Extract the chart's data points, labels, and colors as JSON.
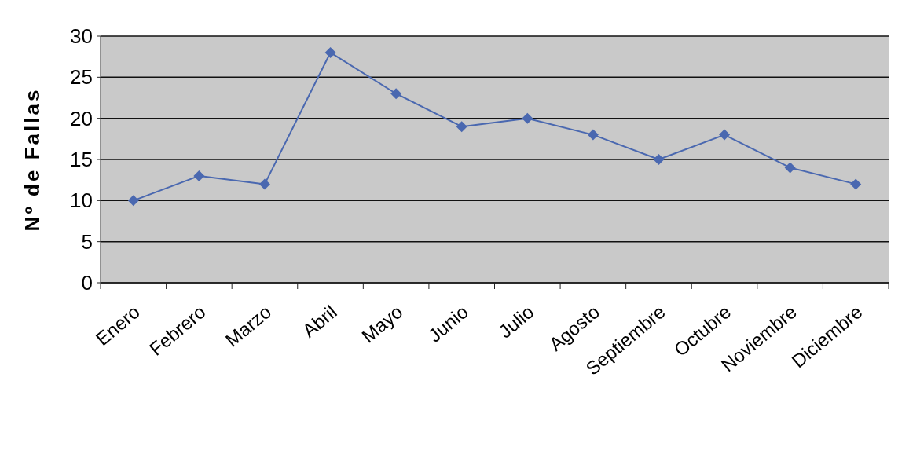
{
  "chart_data": {
    "type": "line",
    "ylabel": "Nº de Fallas",
    "categories": [
      "Enero",
      "Febrero",
      "Marzo",
      "Abril",
      "Mayo",
      "Junio",
      "Julio",
      "Agosto",
      "Septiembre",
      "Octubre",
      "Noviembre",
      "Diciembre"
    ],
    "series": [
      {
        "color": "#4a68b0",
        "values": [
          10,
          13,
          12,
          28,
          23,
          19,
          20,
          18,
          15,
          18,
          14,
          12
        ]
      }
    ],
    "ylim": [
      0,
      30
    ],
    "yticks": [
      0,
      5,
      10,
      15,
      20,
      25,
      30
    ],
    "grid": "y",
    "marker": "diamond",
    "line_style": "solid"
  }
}
